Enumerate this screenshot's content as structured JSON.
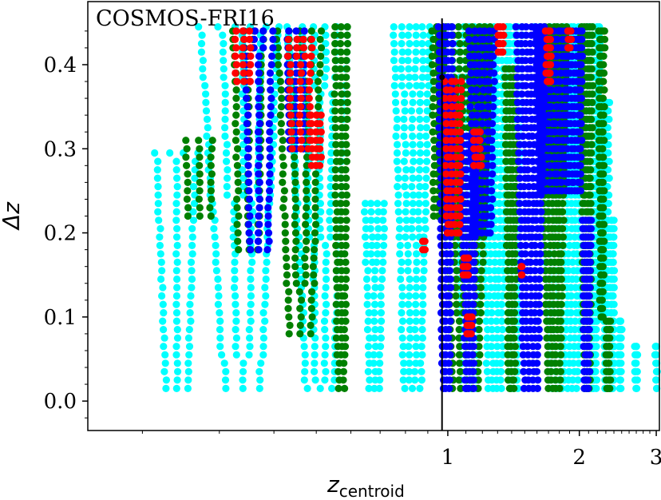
{
  "chart_data": {
    "type": "scatter",
    "title": "COSMOS-FRI16",
    "xlabel": "z",
    "xlabel_sub": "centroid",
    "ylabel": "Δz",
    "xlim": [
      0.15,
      3.05
    ],
    "ylim": [
      -0.035,
      0.475
    ],
    "x_ticks": [
      1,
      2,
      3
    ],
    "y_ticks": [
      0.0,
      0.1,
      0.2,
      0.3,
      0.4
    ],
    "x_tick_labels": [
      "1",
      "2",
      "3"
    ],
    "y_tick_labels": [
      "0.0",
      "0.1",
      "0.2",
      "0.3",
      "0.4"
    ],
    "x_scale": "log",
    "grid": false,
    "legend": "none",
    "vline_x": 0.97,
    "marker": {
      "x": 0.97,
      "y": 0.385,
      "color": "#000000"
    },
    "colors": {
      "cyan": "#00ffff",
      "green": "#008000",
      "blue": "#0000ff",
      "red": "#ff0000"
    },
    "series": [
      {
        "color": "cyan",
        "bands": [
          {
            "c": 0.24,
            "w": 0.04,
            "y0": 0.015,
            "y1": 0.3
          },
          {
            "c": 0.34,
            "w": 0.09,
            "y0": 0.015,
            "y1": 0.445
          },
          {
            "c": 0.51,
            "w": 0.1,
            "y0": 0.015,
            "y1": 0.445
          },
          {
            "c": 0.68,
            "w": 0.05,
            "y0": 0.015,
            "y1": 0.24
          },
          {
            "c": 0.83,
            "w": 0.1,
            "y0": 0.015,
            "y1": 0.445
          },
          {
            "c": 1.12,
            "w": 0.12,
            "y0": 0.015,
            "y1": 0.445
          },
          {
            "c": 1.28,
            "w": 0.12,
            "y0": 0.015,
            "y1": 0.445
          },
          {
            "c": 1.42,
            "w": 0.08,
            "y0": 0.015,
            "y1": 0.445
          },
          {
            "c": 1.85,
            "w": 0.3,
            "y0": 0.015,
            "y1": 0.445
          },
          {
            "c": 2.16,
            "w": 0.08,
            "y0": 0.015,
            "y1": 0.445
          },
          {
            "c": 2.3,
            "w": 0.05,
            "y0": 0.015,
            "y1": 0.36
          },
          {
            "c": 2.38,
            "w": 0.03,
            "y0": 0.015,
            "y1": 0.22
          },
          {
            "c": 2.48,
            "w": 0.03,
            "y0": 0.015,
            "y1": 0.1
          },
          {
            "c": 2.7,
            "w": 0.02,
            "y0": 0.015,
            "y1": 0.065
          },
          {
            "c": 3.0,
            "w": 0.02,
            "y0": 0.015,
            "y1": 0.065
          }
        ]
      },
      {
        "color": "green",
        "bands": [
          {
            "c": 0.27,
            "w": 0.03,
            "y0": 0.22,
            "y1": 0.31
          },
          {
            "c": 0.35,
            "w": 0.04,
            "y0": 0.18,
            "y1": 0.445
          },
          {
            "c": 0.46,
            "w": 0.07,
            "y0": 0.08,
            "y1": 0.445
          },
          {
            "c": 0.57,
            "w": 0.03,
            "y0": 0.015,
            "y1": 0.445
          },
          {
            "c": 0.95,
            "w": 0.04,
            "y0": 0.22,
            "y1": 0.445
          },
          {
            "c": 1.1,
            "w": 0.18,
            "y0": 0.015,
            "y1": 0.445
          },
          {
            "c": 1.4,
            "w": 0.06,
            "y0": 0.015,
            "y1": 0.4
          },
          {
            "c": 1.75,
            "w": 0.14,
            "y0": 0.015,
            "y1": 0.445
          },
          {
            "c": 2.08,
            "w": 0.08,
            "y0": 0.015,
            "y1": 0.445
          },
          {
            "c": 2.25,
            "w": 0.04,
            "y0": 0.1,
            "y1": 0.445
          },
          {
            "c": 2.33,
            "w": 0.04,
            "y0": 0.015,
            "y1": 0.1
          }
        ]
      },
      {
        "color": "blue",
        "bands": [
          {
            "c": 0.37,
            "w": 0.04,
            "y0": 0.18,
            "y1": 0.445
          },
          {
            "c": 0.45,
            "w": 0.03,
            "y0": 0.3,
            "y1": 0.445
          },
          {
            "c": 0.99,
            "w": 0.05,
            "y0": 0.015,
            "y1": 0.445
          },
          {
            "c": 1.12,
            "w": 0.06,
            "y0": 0.015,
            "y1": 0.32
          },
          {
            "c": 1.2,
            "w": 0.1,
            "y0": 0.2,
            "y1": 0.445
          },
          {
            "c": 1.55,
            "w": 0.14,
            "y0": 0.015,
            "y1": 0.445
          },
          {
            "c": 1.75,
            "w": 0.18,
            "y0": 0.25,
            "y1": 0.445
          },
          {
            "c": 1.95,
            "w": 0.1,
            "y0": 0.25,
            "y1": 0.445
          },
          {
            "c": 2.08,
            "w": 0.06,
            "y0": 0.015,
            "y1": 0.22
          }
        ]
      },
      {
        "color": "red",
        "bands": [
          {
            "c": 0.34,
            "w": 0.02,
            "y0": 0.38,
            "y1": 0.445
          },
          {
            "c": 0.46,
            "w": 0.04,
            "y0": 0.3,
            "y1": 0.43
          },
          {
            "c": 0.5,
            "w": 0.02,
            "y0": 0.28,
            "y1": 0.34
          },
          {
            "c": 1.03,
            "w": 0.06,
            "y0": 0.2,
            "y1": 0.38
          },
          {
            "c": 1.17,
            "w": 0.03,
            "y0": 0.28,
            "y1": 0.32
          },
          {
            "c": 1.32,
            "w": 0.03,
            "y0": 0.415,
            "y1": 0.445
          },
          {
            "c": 1.7,
            "w": 0.03,
            "y0": 0.38,
            "y1": 0.445
          },
          {
            "c": 1.9,
            "w": 0.02,
            "y0": 0.42,
            "y1": 0.445
          },
          {
            "c": 1.12,
            "w": 0.02,
            "y0": 0.08,
            "y1": 0.1
          },
          {
            "c": 0.88,
            "w": 0.01,
            "y0": 0.18,
            "y1": 0.19
          },
          {
            "c": 1.1,
            "w": 0.02,
            "y0": 0.15,
            "y1": 0.17
          },
          {
            "c": 1.48,
            "w": 0.01,
            "y0": 0.15,
            "y1": 0.16
          }
        ]
      }
    ]
  }
}
